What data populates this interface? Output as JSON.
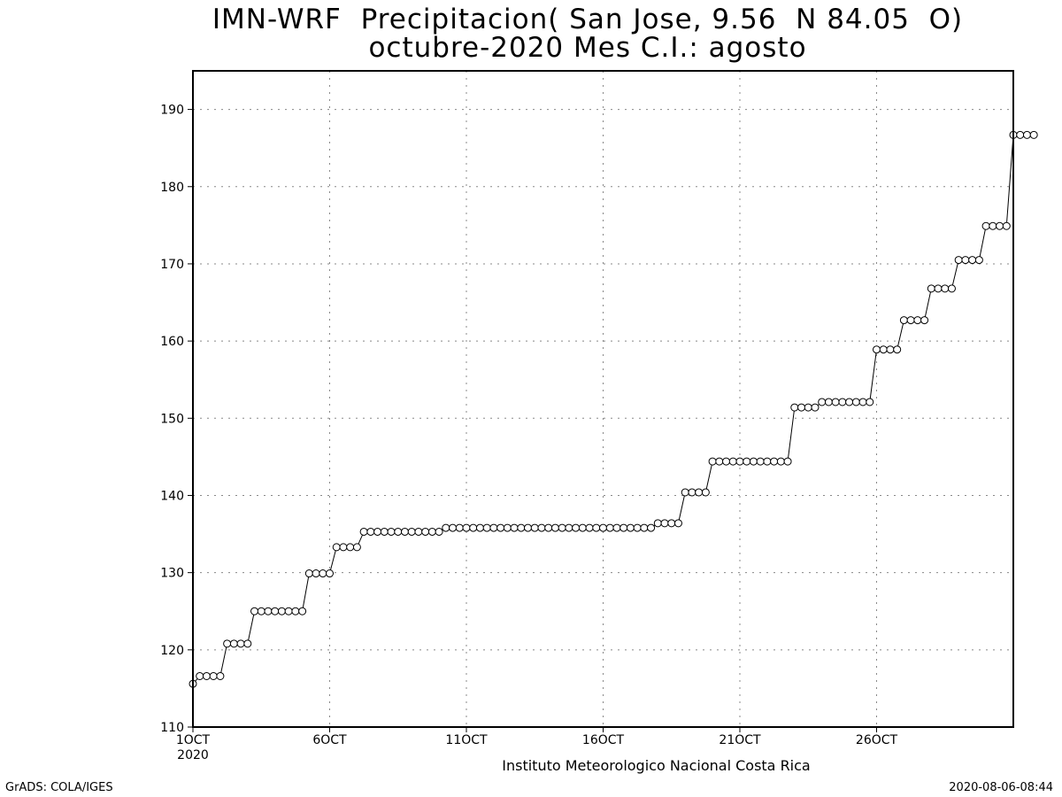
{
  "title_line1": "IMN-WRF  Precipitacion( San Jose, 9.56  N 84.05  O)",
  "title_line2": "octubre-2020 Mes C.I.: agosto",
  "footer_left": "GrADS: COLA/IGES",
  "footer_right": "2020-08-06-08:44",
  "chart_data": {
    "type": "line",
    "title": "IMN-WRF  Precipitacion( San Jose, 9.56  N 84.05  O)",
    "subtitle": "octubre-2020 Mes C.I.: agosto",
    "xlabel": "Instituto Meteorologico Nacional Costa Rica",
    "ylabel": "",
    "x_unit": "day of October 2020 (4 values per day, 6-hourly)",
    "xlim": [
      1,
      31
    ],
    "ylim": [
      110,
      195
    ],
    "yticks": [
      110,
      120,
      130,
      140,
      150,
      160,
      170,
      180,
      190
    ],
    "xtick_labels": [
      {
        "x": 1,
        "label": "1OCT",
        "sub": "2020"
      },
      {
        "x": 6,
        "label": "6OCT"
      },
      {
        "x": 11,
        "label": "11OCT"
      },
      {
        "x": 16,
        "label": "16OCT"
      },
      {
        "x": 21,
        "label": "21OCT"
      },
      {
        "x": 26,
        "label": "26OCT"
      }
    ],
    "grid": true,
    "marker": "open-circle",
    "line_color": "#000000",
    "steps_per_day": 4,
    "values": [
      115.6,
      116.6,
      116.6,
      116.6,
      116.6,
      120.8,
      120.8,
      120.8,
      120.8,
      125.0,
      125.0,
      125.0,
      125.0,
      125.0,
      125.0,
      125.0,
      125.0,
      129.9,
      129.9,
      129.9,
      129.9,
      133.3,
      133.3,
      133.3,
      133.3,
      135.3,
      135.3,
      135.3,
      135.3,
      135.3,
      135.3,
      135.3,
      135.3,
      135.3,
      135.3,
      135.3,
      135.3,
      135.8,
      135.8,
      135.8,
      135.8,
      135.8,
      135.8,
      135.8,
      135.8,
      135.8,
      135.8,
      135.8,
      135.8,
      135.8,
      135.8,
      135.8,
      135.8,
      135.8,
      135.8,
      135.8,
      135.8,
      135.8,
      135.8,
      135.8,
      135.8,
      135.8,
      135.8,
      135.8,
      135.8,
      135.8,
      135.8,
      135.8,
      136.4,
      136.4,
      136.4,
      136.4,
      140.4,
      140.4,
      140.4,
      140.4,
      144.4,
      144.4,
      144.4,
      144.4,
      144.4,
      144.4,
      144.4,
      144.4,
      144.4,
      144.4,
      144.4,
      144.4,
      151.4,
      151.4,
      151.4,
      151.4,
      152.1,
      152.1,
      152.1,
      152.1,
      152.1,
      152.1,
      152.1,
      152.1,
      158.9,
      158.9,
      158.9,
      158.9,
      162.7,
      162.7,
      162.7,
      162.7,
      166.8,
      166.8,
      166.8,
      166.8,
      170.5,
      170.5,
      170.5,
      170.5,
      174.9,
      174.9,
      174.9,
      174.9,
      186.7,
      186.7,
      186.7,
      186.7
    ]
  }
}
